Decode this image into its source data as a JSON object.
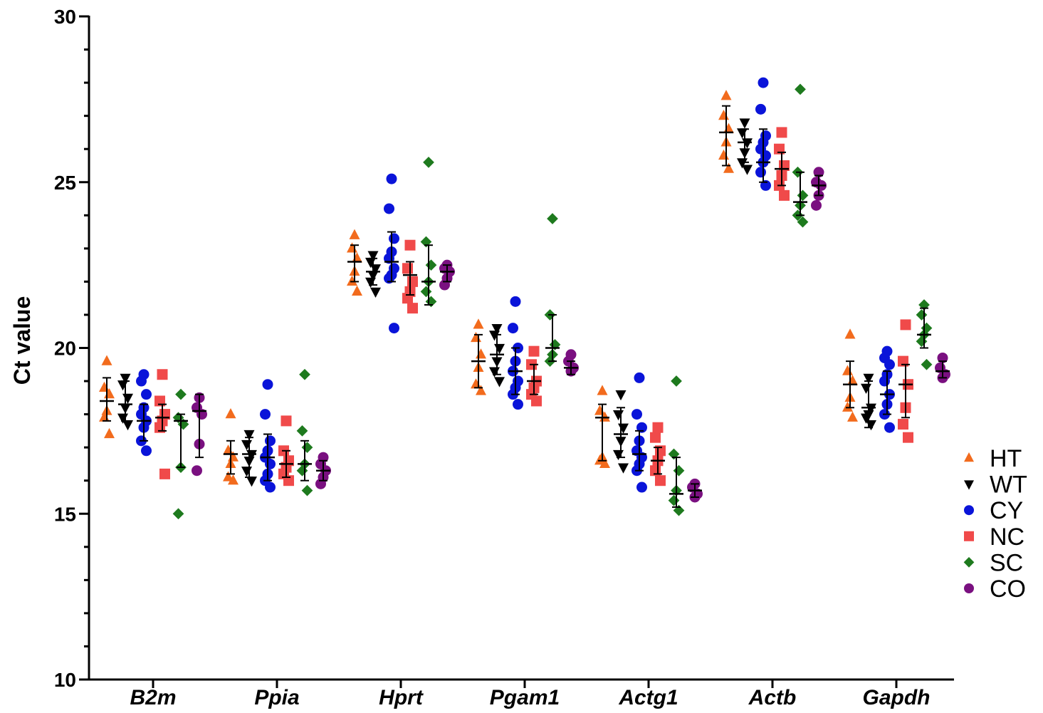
{
  "chart_data": {
    "type": "scatter",
    "ylabel": "Ct value",
    "ylim": [
      10,
      30
    ],
    "yticks": [
      "10",
      "15",
      "20",
      "25",
      "30"
    ],
    "categories": [
      "B2m",
      "Ppia",
      "Hprt",
      "Pgam1",
      "Actg1",
      "Actb",
      "Gapdh"
    ],
    "legend_position": "right",
    "series": [
      {
        "name": "HT",
        "color": "#F26B1D",
        "marker": "triangle-up",
        "values": [
          [
            19.6,
            18.8,
            18.6,
            18.1,
            17.9,
            17.4
          ],
          [
            18.0,
            16.9,
            16.7,
            16.5,
            16.1,
            16.0
          ],
          [
            23.4,
            23.0,
            22.7,
            22.3,
            22.0,
            21.7
          ],
          [
            20.7,
            20.3,
            19.8,
            19.4,
            18.9,
            18.7
          ],
          [
            18.7,
            18.1,
            17.9,
            16.7,
            16.6,
            16.5
          ],
          [
            27.6,
            27.0,
            26.6,
            26.2,
            25.8,
            25.4
          ],
          [
            20.4,
            19.3,
            19.0,
            18.5,
            18.2,
            17.9
          ]
        ],
        "mean": [
          18.4,
          16.8,
          22.6,
          19.6,
          17.9,
          26.5,
          18.9
        ],
        "err": [
          [
            17.8,
            19.1
          ],
          [
            16.2,
            17.2
          ],
          [
            22.0,
            23.1
          ],
          [
            18.8,
            20.4
          ],
          [
            16.6,
            18.3
          ],
          [
            25.5,
            27.3
          ],
          [
            18.2,
            19.6
          ]
        ]
      },
      {
        "name": "WT",
        "color": "#000000",
        "marker": "triangle-down",
        "values": [
          [
            19.1,
            18.9,
            18.5,
            18.2,
            17.9,
            17.7
          ],
          [
            17.4,
            17.1,
            16.8,
            16.6,
            16.3,
            16.0
          ],
          [
            22.8,
            22.6,
            22.4,
            22.2,
            22.0,
            21.7
          ],
          [
            20.6,
            20.4,
            20.0,
            19.6,
            19.3,
            19.0
          ],
          [
            18.6,
            18.0,
            17.6,
            17.2,
            16.8,
            16.4
          ],
          [
            26.8,
            26.5,
            26.2,
            25.9,
            25.6,
            25.4
          ],
          [
            19.1,
            18.8,
            18.2,
            18.0,
            17.9,
            17.7
          ]
        ],
        "mean": [
          18.3,
          16.8,
          22.3,
          19.8,
          17.4,
          26.2,
          18.2
        ],
        "err": [
          [
            17.8,
            19.0
          ],
          [
            16.1,
            17.3
          ],
          [
            21.9,
            22.7
          ],
          [
            19.2,
            20.4
          ],
          [
            16.7,
            18.2
          ],
          [
            25.6,
            26.6
          ],
          [
            17.6,
            19.0
          ]
        ]
      },
      {
        "name": "CY",
        "color": "#0A14D9",
        "marker": "circle",
        "values": [
          [
            19.2,
            19.0,
            18.6,
            18.2,
            18.0,
            17.8,
            17.6,
            17.2,
            16.9
          ],
          [
            18.9,
            18.0,
            17.2,
            16.9,
            16.7,
            16.5,
            16.2,
            16.0,
            15.8
          ],
          [
            25.1,
            24.2,
            23.3,
            22.9,
            22.7,
            22.4,
            22.2,
            22.1,
            20.6
          ],
          [
            21.4,
            20.6,
            20.0,
            19.6,
            19.3,
            19.0,
            18.8,
            18.6,
            18.3
          ],
          [
            19.1,
            18.0,
            17.6,
            17.2,
            16.9,
            16.7,
            16.5,
            16.3,
            15.8
          ],
          [
            28.0,
            27.2,
            26.4,
            26.2,
            26.0,
            25.8,
            25.6,
            25.3,
            24.9
          ],
          [
            19.9,
            19.7,
            19.5,
            19.2,
            19.0,
            18.6,
            18.3,
            18.0,
            17.6
          ]
        ],
        "mean": [
          17.8,
          16.7,
          22.6,
          19.3,
          16.8,
          25.6,
          18.6
        ],
        "err": [
          [
            17.2,
            18.3
          ],
          [
            16.0,
            17.4
          ],
          [
            22.0,
            23.5
          ],
          [
            18.6,
            20.0
          ],
          [
            16.3,
            17.5
          ],
          [
            25.0,
            26.6
          ],
          [
            18.0,
            19.3
          ]
        ]
      },
      {
        "name": "NC",
        "color": "#F04A4A",
        "marker": "square",
        "values": [
          [
            19.2,
            18.4,
            18.0,
            17.8,
            17.6,
            16.2
          ],
          [
            17.8,
            16.9,
            16.6,
            16.4,
            16.2,
            16.0
          ],
          [
            23.1,
            22.4,
            22.0,
            21.7,
            21.5,
            21.2
          ],
          [
            19.9,
            19.5,
            19.0,
            18.8,
            18.6,
            18.4
          ],
          [
            17.6,
            17.3,
            16.9,
            16.6,
            16.3,
            16.0
          ],
          [
            26.5,
            26.0,
            25.5,
            25.2,
            24.9,
            24.6
          ],
          [
            20.7,
            19.6,
            18.9,
            18.2,
            17.7,
            17.3
          ]
        ],
        "mean": [
          17.9,
          16.5,
          22.2,
          19.0,
          16.6,
          25.4,
          18.9
        ],
        "err": [
          [
            17.5,
            18.3
          ],
          [
            16.1,
            16.9
          ],
          [
            21.6,
            22.6
          ],
          [
            18.6,
            19.5
          ],
          [
            16.2,
            17.0
          ],
          [
            24.9,
            25.9
          ],
          [
            17.9,
            19.5
          ]
        ]
      },
      {
        "name": "SC",
        "color": "#1E7A1E",
        "marker": "diamond",
        "values": [
          [
            18.6,
            17.9,
            17.7,
            16.4,
            15.0
          ],
          [
            19.2,
            17.5,
            17.0,
            16.5,
            16.3,
            15.7
          ],
          [
            25.6,
            23.2,
            22.5,
            22.0,
            21.7,
            21.4
          ],
          [
            23.9,
            21.0,
            20.1,
            19.8,
            19.6
          ],
          [
            19.0,
            16.8,
            16.3,
            15.7,
            15.4,
            15.1
          ],
          [
            27.8,
            25.3,
            24.6,
            24.3,
            24.0,
            23.8
          ],
          [
            21.3,
            21.0,
            20.6,
            20.4,
            20.2,
            19.5
          ]
        ],
        "mean": [
          17.8,
          16.5,
          22.0,
          20.0,
          15.6,
          24.4,
          20.4
        ],
        "err": [
          [
            16.4,
            18.0
          ],
          [
            16.0,
            17.2
          ],
          [
            21.3,
            23.1
          ],
          [
            19.6,
            21.0
          ],
          [
            15.2,
            16.7
          ],
          [
            24.0,
            25.3
          ],
          [
            20.0,
            21.2
          ]
        ]
      },
      {
        "name": "CO",
        "color": "#7A1080",
        "marker": "circle",
        "values": [
          [
            18.5,
            18.2,
            18.0,
            17.1,
            16.3
          ],
          [
            16.7,
            16.5,
            16.3,
            16.1,
            15.9
          ],
          [
            22.5,
            22.4,
            22.3,
            22.1,
            21.9
          ],
          [
            19.8,
            19.6,
            19.4,
            19.3
          ],
          [
            15.9,
            15.8,
            15.6,
            15.5
          ],
          [
            25.3,
            25.0,
            24.9,
            24.6,
            24.3
          ],
          [
            19.7,
            19.4,
            19.2,
            19.1
          ]
        ],
        "mean": [
          18.1,
          16.3,
          22.3,
          19.4,
          15.7,
          24.9,
          19.3
        ],
        "err": [
          [
            16.7,
            18.6
          ],
          [
            16.0,
            16.6
          ],
          [
            22.0,
            22.5
          ],
          [
            19.2,
            19.6
          ],
          [
            15.5,
            15.9
          ],
          [
            24.6,
            25.2
          ],
          [
            19.1,
            19.6
          ]
        ]
      }
    ]
  }
}
